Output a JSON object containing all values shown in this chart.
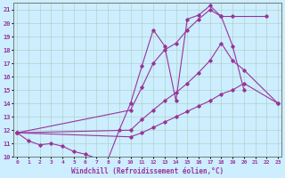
{
  "xlabel": "Windchill (Refroidissement éolien,°C)",
  "background_color": "#cceeff",
  "grid_color": "#aaccbb",
  "line_color": "#993399",
  "xmin": 0,
  "xmax": 23,
  "ymin": 10,
  "ymax": 21,
  "series": [
    {
      "x": [
        0,
        1,
        2,
        3,
        4,
        5,
        6,
        7,
        8,
        9,
        10,
        11,
        12,
        13,
        14,
        15,
        16,
        17,
        18,
        19,
        20
      ],
      "y": [
        11.8,
        11.2,
        10.9,
        11.0,
        10.8,
        10.4,
        10.2,
        9.9,
        9.8,
        12.0,
        14.0,
        16.8,
        19.5,
        18.3,
        14.2,
        20.3,
        20.6,
        21.3,
        20.5,
        18.3,
        15.0
      ]
    },
    {
      "x": [
        0,
        10,
        11,
        12,
        13,
        14,
        15,
        16,
        17,
        18,
        19,
        22
      ],
      "y": [
        11.8,
        13.5,
        15.2,
        17.0,
        18.0,
        18.5,
        19.5,
        20.3,
        21.0,
        20.5,
        20.5,
        20.5
      ]
    },
    {
      "x": [
        0,
        10,
        11,
        12,
        13,
        14,
        15,
        16,
        17,
        18,
        19,
        20,
        23
      ],
      "y": [
        11.8,
        12.0,
        12.8,
        13.5,
        14.2,
        14.8,
        15.5,
        16.3,
        17.2,
        18.5,
        17.2,
        16.5,
        14.0
      ]
    },
    {
      "x": [
        0,
        10,
        11,
        12,
        13,
        14,
        15,
        16,
        17,
        18,
        19,
        20,
        23
      ],
      "y": [
        11.8,
        11.5,
        11.8,
        12.2,
        12.6,
        13.0,
        13.4,
        13.8,
        14.2,
        14.7,
        15.0,
        15.5,
        14.0
      ]
    }
  ]
}
